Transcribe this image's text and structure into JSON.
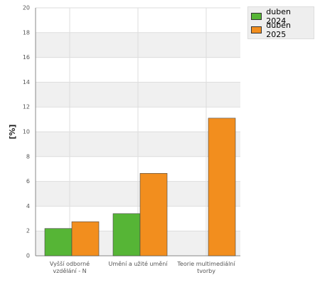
{
  "chart_data": {
    "type": "bar",
    "y_label": "[%]",
    "categories": [
      "Vyšší odborné vzdělání - N",
      "Umění a užité umění",
      "Teorie multimediální tvorby"
    ],
    "series": [
      {
        "name": "duben 2024",
        "color": "#56b536",
        "values": [
          2.2,
          3.4,
          null
        ]
      },
      {
        "name": "duben 2025",
        "color": "#f28e1e",
        "values": [
          2.75,
          6.65,
          11.1
        ]
      }
    ],
    "ylim": [
      0,
      20
    ],
    "yticks": [
      0,
      2,
      4,
      6,
      8,
      10,
      12,
      14,
      16,
      18,
      20
    ],
    "grid": true,
    "legend": "top-right"
  }
}
